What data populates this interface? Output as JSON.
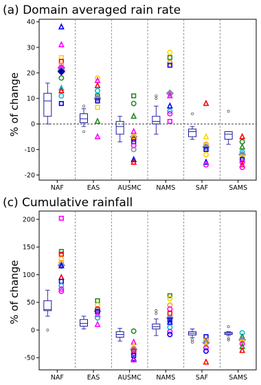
{
  "chart_data": [
    {
      "type": "box+scatter",
      "title": "(a) Domain averaged rain rate",
      "ylabel": "% of change",
      "ylim": [
        -22,
        41
      ],
      "yticks": [
        -20,
        -10,
        0,
        10,
        20,
        30,
        40
      ],
      "categories": [
        "NAF",
        "EAS",
        "AUSMC",
        "NAMS",
        "SAF",
        "SAMS"
      ],
      "zero_line": true,
      "boxes": [
        {
          "q1": 3,
          "median": 9,
          "q3": 12,
          "whisker_low": 0,
          "whisker_high": 16,
          "outliers": []
        },
        {
          "q1": 0.5,
          "median": 2,
          "q3": 4,
          "whisker_low": -1,
          "whisker_high": 6,
          "outliers": [
            7,
            -3
          ]
        },
        {
          "q1": -4,
          "median": -1,
          "q3": 1,
          "whisker_low": -7,
          "whisker_high": 3,
          "outliers": []
        },
        {
          "q1": 0,
          "median": 1,
          "q3": 3,
          "whisker_low": -4,
          "whisker_high": 7,
          "outliers": [
            11,
            10
          ]
        },
        {
          "q1": -5,
          "median": -3,
          "q3": -2,
          "whisker_low": -6,
          "whisker_high": -1,
          "outliers": [
            4
          ]
        },
        {
          "q1": -6,
          "median": -4,
          "q3": -3,
          "whisker_low": -8,
          "whisker_high": -3,
          "outliers": [
            5
          ]
        }
      ],
      "points": [
        [
          {
            "v": 38,
            "m": "tri",
            "c": "#0000ee"
          },
          {
            "v": 31,
            "m": "tri",
            "c": "#ff00ff"
          },
          {
            "v": 26,
            "m": "sq",
            "c": "#ffd400"
          },
          {
            "v": 24.5,
            "m": "sq",
            "c": "#ff0000"
          },
          {
            "v": 23,
            "m": "sq",
            "c": "#ffa500"
          },
          {
            "v": 22,
            "m": "dia",
            "c": "#ff00ff"
          },
          {
            "v": 21,
            "m": "dia",
            "c": "#8888aa"
          },
          {
            "v": 20.5,
            "m": "dia",
            "c": "#0000aa"
          },
          {
            "v": 18,
            "m": "circ",
            "c": "#228b22"
          },
          {
            "v": 14,
            "m": "tri",
            "c": "#00bcd4"
          },
          {
            "v": 13,
            "m": "tri",
            "c": "#ff0000"
          },
          {
            "v": 11,
            "m": "circ",
            "c": "#00bcd4"
          },
          {
            "v": 8,
            "m": "sq",
            "c": "#0000ee"
          }
        ],
        [
          {
            "v": 18,
            "m": "circ",
            "c": "#ffd400"
          },
          {
            "v": 17,
            "m": "tri",
            "c": "#ff00ff"
          },
          {
            "v": 15,
            "m": "tri",
            "c": "#ff0000"
          },
          {
            "v": 13,
            "m": "circ",
            "c": "#00bcd4"
          },
          {
            "v": 11,
            "m": "sq",
            "c": "#228b22"
          },
          {
            "v": 10,
            "m": "dia",
            "c": "#8888aa"
          },
          {
            "v": 9,
            "m": "sq",
            "c": "#0000ee"
          },
          {
            "v": 6.5,
            "m": "sq",
            "c": "#ffd400"
          },
          {
            "v": 1,
            "m": "tri",
            "c": "#228b22"
          },
          {
            "v": -5,
            "m": "tri",
            "c": "#ff00ff"
          }
        ],
        [
          {
            "v": 11,
            "m": "sq",
            "c": "#228b22"
          },
          {
            "v": 8,
            "m": "circ",
            "c": "#228b22"
          },
          {
            "v": 3,
            "m": "tri",
            "c": "#228b22"
          },
          {
            "v": -3,
            "m": "tri",
            "c": "#ff00ff"
          },
          {
            "v": -5,
            "m": "dia",
            "c": "#8888aa"
          },
          {
            "v": -5,
            "m": "sq",
            "c": "#ffd400"
          },
          {
            "v": -6,
            "m": "circ",
            "c": "#ff0000"
          },
          {
            "v": -7,
            "m": "sq",
            "c": "#0000ee"
          },
          {
            "v": -8.5,
            "m": "circ",
            "c": "#ff00ff"
          },
          {
            "v": -10,
            "m": "circ",
            "c": "#8888aa"
          },
          {
            "v": -14,
            "m": "tri",
            "c": "#0000ee"
          },
          {
            "v": -15,
            "m": "tri",
            "c": "#ff0000"
          }
        ],
        [
          {
            "v": 28,
            "m": "circ",
            "c": "#ffd400"
          },
          {
            "v": 26,
            "m": "sq",
            "c": "#228b22"
          },
          {
            "v": 24,
            "m": "circ",
            "c": "#ffa500"
          },
          {
            "v": 23,
            "m": "sq",
            "c": "#0000ee"
          },
          {
            "v": 12,
            "m": "dia",
            "c": "#8888aa"
          },
          {
            "v": 11,
            "m": "tri",
            "c": "#ff00ff"
          },
          {
            "v": 7,
            "m": "tri",
            "c": "#0000ee"
          },
          {
            "v": 5,
            "m": "circ",
            "c": "#00bcd4"
          },
          {
            "v": 4,
            "m": "circ",
            "c": "#ff00ff"
          },
          {
            "v": 1,
            "m": "sq",
            "c": "#ff00ff"
          }
        ],
        [
          {
            "v": 8,
            "m": "tri",
            "c": "#ff0000"
          },
          {
            "v": -5,
            "m": "tri",
            "c": "#ffd400"
          },
          {
            "v": -8,
            "m": "circ",
            "c": "#ffa500"
          },
          {
            "v": -9,
            "m": "dia",
            "c": "#8888aa"
          },
          {
            "v": -10,
            "m": "sq",
            "c": "#0000ee"
          },
          {
            "v": -12,
            "m": "circ",
            "c": "#ffd400"
          },
          {
            "v": -15,
            "m": "tri",
            "c": "#0000ee"
          },
          {
            "v": -16,
            "m": "circ",
            "c": "#ff00ff"
          }
        ],
        [
          {
            "v": -5,
            "m": "tri",
            "c": "#ff0000"
          },
          {
            "v": -7,
            "m": "circ",
            "c": "#228b22"
          },
          {
            "v": -9,
            "m": "tri",
            "c": "#228b22"
          },
          {
            "v": -11,
            "m": "circ",
            "c": "#00bcd4"
          },
          {
            "v": -12,
            "m": "dia",
            "c": "#8888aa"
          },
          {
            "v": -13,
            "m": "sq",
            "c": "#ffd400"
          },
          {
            "v": -14,
            "m": "sq",
            "c": "#0000ee"
          },
          {
            "v": -15,
            "m": "circ",
            "c": "#ff00ff"
          },
          {
            "v": -16,
            "m": "tri",
            "c": "#ff0000"
          },
          {
            "v": -17,
            "m": "circ",
            "c": "#ff00ff"
          }
        ]
      ]
    },
    {
      "type": "box+scatter",
      "title": "(c) Cumulative rainfall",
      "ylabel": "% of change",
      "ylim": [
        -72,
        215
      ],
      "yticks": [
        -50,
        0,
        50,
        100,
        150,
        200
      ],
      "categories": [
        "NAF",
        "EAS",
        "AUSMC",
        "NAMS",
        "SAF",
        "SAMS"
      ],
      "zero_line": false,
      "boxes": [
        {
          "q1": 35,
          "median": 37,
          "q3": 53,
          "whisker_low": 25,
          "whisker_high": 72,
          "outliers": [
            0
          ]
        },
        {
          "q1": 7,
          "median": 12,
          "q3": 19,
          "whisker_low": 2,
          "whisker_high": 25,
          "outliers": []
        },
        {
          "q1": -13,
          "median": -8,
          "q3": -3,
          "whisker_low": -20,
          "whisker_high": 3,
          "outliers": []
        },
        {
          "q1": 2,
          "median": 6,
          "q3": 11,
          "whisker_low": -10,
          "whisker_high": 20,
          "outliers": [
            35,
            30
          ]
        },
        {
          "q1": -9,
          "median": -6,
          "q3": -3,
          "whisker_low": -14,
          "whisker_high": 2,
          "outliers": [
            -18,
            -22
          ]
        },
        {
          "q1": -8,
          "median": -6,
          "q3": -4,
          "whisker_low": -10,
          "whisker_high": -3,
          "outliers": [
            6,
            -15,
            -18
          ]
        }
      ],
      "points": [
        [
          {
            "v": 202,
            "m": "sq",
            "c": "#ff00ff"
          },
          {
            "v": 142,
            "m": "sq",
            "c": "#228b22"
          },
          {
            "v": 137,
            "m": "sq",
            "c": "#ff0000"
          },
          {
            "v": 128,
            "m": "circ",
            "c": "#ffd400"
          },
          {
            "v": 122,
            "m": "circ",
            "c": "#ffa500"
          },
          {
            "v": 117,
            "m": "dia",
            "c": "#8888aa"
          },
          {
            "v": 116,
            "m": "tri",
            "c": "#0000ee"
          },
          {
            "v": 95,
            "m": "tri",
            "c": "#ff0000"
          },
          {
            "v": 88,
            "m": "sq",
            "c": "#0000ee"
          },
          {
            "v": 80,
            "m": "circ",
            "c": "#00bcd4"
          },
          {
            "v": 74,
            "m": "circ",
            "c": "#ff00ff"
          },
          {
            "v": 70,
            "m": "circ",
            "c": "#ff00ff"
          }
        ],
        [
          {
            "v": 53,
            "m": "sq",
            "c": "#228b22"
          },
          {
            "v": 45,
            "m": "circ",
            "c": "#ffd400"
          },
          {
            "v": 38,
            "m": "circ",
            "c": "#ff0000"
          },
          {
            "v": 34,
            "m": "dia",
            "c": "#8888aa"
          },
          {
            "v": 33,
            "m": "sq",
            "c": "#0000ee"
          },
          {
            "v": 28,
            "m": "tri",
            "c": "#ff00ff"
          },
          {
            "v": 22,
            "m": "circ",
            "c": "#00bcd4"
          },
          {
            "v": 10,
            "m": "tri",
            "c": "#ff00ff"
          }
        ],
        [
          {
            "v": -2,
            "m": "circ",
            "c": "#228b22"
          },
          {
            "v": -22,
            "m": "tri",
            "c": "#ff00ff"
          },
          {
            "v": -28,
            "m": "tri",
            "c": "#ffd400"
          },
          {
            "v": -35,
            "m": "dia",
            "c": "#8888aa"
          },
          {
            "v": -38,
            "m": "circ",
            "c": "#ff0000"
          },
          {
            "v": -42,
            "m": "circ",
            "c": "#ff00ff"
          },
          {
            "v": -46,
            "m": "sq",
            "c": "#0000ee"
          },
          {
            "v": -52,
            "m": "tri",
            "c": "#0000ee"
          },
          {
            "v": -54,
            "m": "tri",
            "c": "#ff00ff"
          }
        ],
        [
          {
            "v": 62,
            "m": "sq",
            "c": "#228b22"
          },
          {
            "v": 57,
            "m": "circ",
            "c": "#ffd400"
          },
          {
            "v": 45,
            "m": "circ",
            "c": "#ffa500"
          },
          {
            "v": 38,
            "m": "circ",
            "c": "#ff00ff"
          },
          {
            "v": 30,
            "m": "sq",
            "c": "#ff0000"
          },
          {
            "v": 22,
            "m": "dia",
            "c": "#8888aa"
          },
          {
            "v": 18,
            "m": "sq",
            "c": "#0000ee"
          },
          {
            "v": 14,
            "m": "tri",
            "c": "#0000ee"
          },
          {
            "v": 5,
            "m": "circ",
            "c": "#00bcd4"
          },
          {
            "v": -3,
            "m": "circ",
            "c": "#ff00ff"
          },
          {
            "v": -8,
            "m": "circ",
            "c": "#0000ee"
          }
        ],
        [
          {
            "v": -12,
            "m": "sq",
            "c": "#0000ee"
          },
          {
            "v": -18,
            "m": "circ",
            "c": "#ffa500"
          },
          {
            "v": -23,
            "m": "dia",
            "c": "#8888aa"
          },
          {
            "v": -27,
            "m": "tri",
            "c": "#ffd400"
          },
          {
            "v": -32,
            "m": "circ",
            "c": "#ff00ff"
          },
          {
            "v": -38,
            "m": "circ",
            "c": "#0000ee"
          },
          {
            "v": -58,
            "m": "tri",
            "c": "#ff0000"
          }
        ],
        [
          {
            "v": -5,
            "m": "circ",
            "c": "#00bcd4"
          },
          {
            "v": -12,
            "m": "tri",
            "c": "#228b22"
          },
          {
            "v": -18,
            "m": "dia",
            "c": "#8888aa"
          },
          {
            "v": -22,
            "m": "sq",
            "c": "#ffd400"
          },
          {
            "v": -25,
            "m": "circ",
            "c": "#ff00ff"
          },
          {
            "v": -30,
            "m": "tri",
            "c": "#228b22"
          },
          {
            "v": -37,
            "m": "tri",
            "c": "#ff0000"
          }
        ]
      ]
    }
  ]
}
